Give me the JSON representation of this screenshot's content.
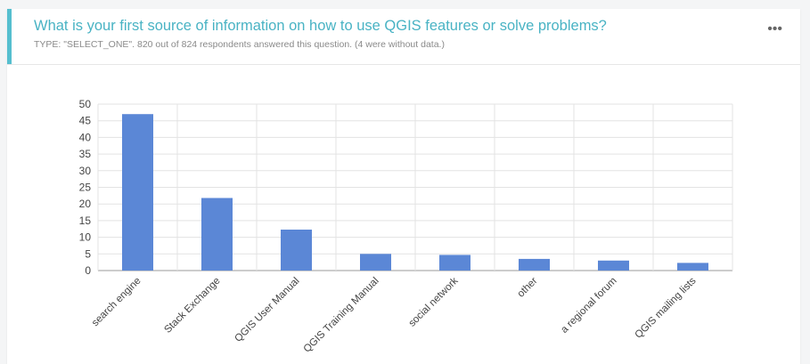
{
  "question": {
    "title": "What is your first source of information on how to use QGIS features or solve problems?",
    "subtitle": "TYPE: \"SELECT_ONE\". 820 out of 824 respondents answered this question. (4 were without data.)",
    "menu_icon": "more-horizontal-icon"
  },
  "colors": {
    "accent": "#55bfcf",
    "title": "#49b3c4",
    "bar": "#5b87d6"
  },
  "chart_data": {
    "type": "bar",
    "title": "",
    "xlabel": "",
    "ylabel": "",
    "ylim": [
      0,
      50
    ],
    "yticks": [
      0,
      5,
      10,
      15,
      20,
      25,
      30,
      35,
      40,
      45,
      50
    ],
    "grid": true,
    "categories": [
      "search engine",
      "Stack Exchange",
      "QGIS User Manual",
      "QGIS Training Manual",
      "social network",
      "other",
      "a regional forum",
      "QGIS mailing lists"
    ],
    "values": [
      47,
      21.8,
      12.3,
      5,
      4.7,
      3.5,
      3,
      2.3
    ]
  }
}
